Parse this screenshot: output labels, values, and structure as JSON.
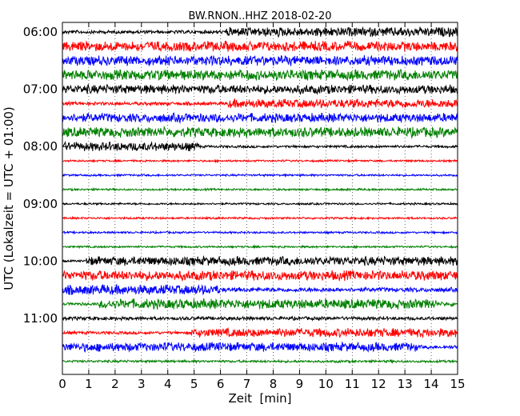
{
  "chart_data": {
    "type": "line",
    "title": "BW.RNON..HHZ 2018-02-20",
    "xlabel": "Zeit  [min]",
    "ylabel": "UTC (Lokalzeit = UTC + 01:00)",
    "xlim": [
      0,
      15
    ],
    "x_ticks": [
      "0",
      "1",
      "2",
      "3",
      "4",
      "5",
      "6",
      "7",
      "8",
      "9",
      "10",
      "11",
      "12",
      "13",
      "14",
      "15"
    ],
    "y_ticks": [
      "06:00",
      "07:00",
      "08:00",
      "09:00",
      "10:00",
      "11:00"
    ],
    "grid": "vertical dotted lines at each minute",
    "trace_interval_min": 15,
    "colors": [
      "#000000",
      "#ff0000",
      "#0000ff",
      "#008000"
    ],
    "traces": [
      {
        "start": "06:00",
        "color": "#000000",
        "amplitude_segments": [
          [
            0,
            6.2,
            0.35
          ],
          [
            6.2,
            15,
            0.95
          ]
        ]
      },
      {
        "start": "06:15",
        "color": "#ff0000",
        "amplitude_segments": [
          [
            0,
            15,
            1.0
          ]
        ]
      },
      {
        "start": "06:30",
        "color": "#0000ff",
        "amplitude_segments": [
          [
            0,
            15,
            1.0
          ]
        ]
      },
      {
        "start": "06:45",
        "color": "#008000",
        "amplitude_segments": [
          [
            0,
            15,
            1.05
          ]
        ]
      },
      {
        "start": "07:00",
        "color": "#000000",
        "amplitude_segments": [
          [
            0,
            15,
            0.9
          ]
        ]
      },
      {
        "start": "07:15",
        "color": "#ff0000",
        "amplitude_segments": [
          [
            0,
            6.3,
            0.35
          ],
          [
            6.3,
            15,
            0.9
          ]
        ]
      },
      {
        "start": "07:30",
        "color": "#0000ff",
        "amplitude_segments": [
          [
            0,
            15,
            0.9
          ]
        ]
      },
      {
        "start": "07:45",
        "color": "#008000",
        "amplitude_segments": [
          [
            0,
            15,
            1.0
          ]
        ]
      },
      {
        "start": "08:00",
        "color": "#000000",
        "amplitude_segments": [
          [
            0,
            5.2,
            0.9
          ],
          [
            5.2,
            15,
            0.25
          ]
        ]
      },
      {
        "start": "08:15",
        "color": "#ff0000",
        "amplitude_segments": [
          [
            0,
            15,
            0.2
          ]
        ]
      },
      {
        "start": "08:30",
        "color": "#0000ff",
        "amplitude_segments": [
          [
            0,
            15,
            0.2
          ]
        ]
      },
      {
        "start": "08:45",
        "color": "#008000",
        "amplitude_segments": [
          [
            0,
            15,
            0.2
          ]
        ]
      },
      {
        "start": "09:00",
        "color": "#000000",
        "amplitude_segments": [
          [
            0,
            15,
            0.2
          ]
        ]
      },
      {
        "start": "09:15",
        "color": "#ff0000",
        "amplitude_segments": [
          [
            0,
            15,
            0.2
          ]
        ]
      },
      {
        "start": "09:30",
        "color": "#0000ff",
        "amplitude_segments": [
          [
            0,
            15,
            0.2
          ]
        ]
      },
      {
        "start": "09:45",
        "color": "#008000",
        "amplitude_segments": [
          [
            0,
            15,
            0.2
          ]
        ]
      },
      {
        "start": "10:00",
        "color": "#000000",
        "amplitude_segments": [
          [
            0,
            0.9,
            0.2
          ],
          [
            0.9,
            15,
            0.9
          ]
        ]
      },
      {
        "start": "10:15",
        "color": "#ff0000",
        "amplitude_segments": [
          [
            0,
            15,
            1.0
          ]
        ]
      },
      {
        "start": "10:30",
        "color": "#0000ff",
        "amplitude_segments": [
          [
            0,
            6.0,
            1.0
          ],
          [
            6.0,
            15,
            0.45
          ]
        ]
      },
      {
        "start": "10:45",
        "color": "#008000",
        "amplitude_segments": [
          [
            0,
            1.4,
            0.3
          ],
          [
            1.4,
            14.2,
            1.0
          ],
          [
            14.2,
            15,
            0.4
          ]
        ]
      },
      {
        "start": "11:00",
        "color": "#000000",
        "amplitude_segments": [
          [
            0,
            15,
            0.35
          ]
        ]
      },
      {
        "start": "11:15",
        "color": "#ff0000",
        "amplitude_segments": [
          [
            0,
            4.9,
            0.3
          ],
          [
            4.9,
            15,
            0.9
          ]
        ]
      },
      {
        "start": "11:30",
        "color": "#0000ff",
        "amplitude_segments": [
          [
            0,
            13.5,
            0.9
          ],
          [
            13.5,
            15,
            0.35
          ]
        ]
      },
      {
        "start": "11:45",
        "color": "#008000",
        "amplitude_segments": [
          [
            0,
            15,
            0.25
          ]
        ]
      }
    ]
  }
}
